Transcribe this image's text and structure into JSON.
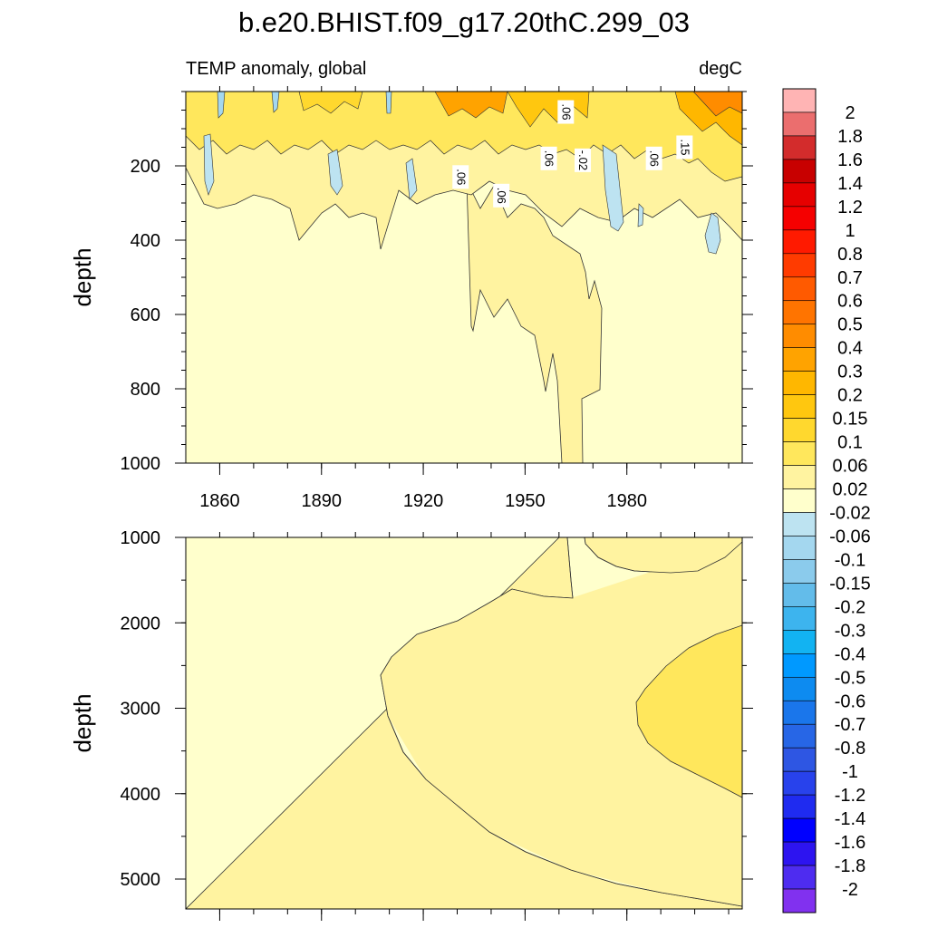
{
  "title": "b.e20.BHIST.f09_g17.20thC.299_03",
  "left_string": "TEMP anomaly, global",
  "right_string": "degC",
  "colors": {
    "background": "#ffffff",
    "axis": "#000000",
    "contour_line": "#333333"
  },
  "chart_data": [
    {
      "type": "heatmap",
      "panel": "upper",
      "xlabel": "",
      "ylabel": "depth",
      "xlim": [
        1850,
        2014
      ],
      "ylim": [
        1000,
        0
      ],
      "x_ticks": [
        1860,
        1890,
        1920,
        1950,
        1980
      ],
      "y_ticks": [
        200,
        400,
        600,
        800,
        1000
      ],
      "contour_labels": [
        {
          "text": ".06",
          "x": 1931,
          "y": 230
        },
        {
          "text": ".06",
          "x": 1943,
          "y": 280
        },
        {
          "text": ".06",
          "x": 1957,
          "y": 180
        },
        {
          "text": ".06",
          "x": 1962,
          "y": 55
        },
        {
          "text": "-.02",
          "x": 1967,
          "y": 185
        },
        {
          "text": ".06",
          "x": 1988,
          "y": 180
        },
        {
          "text": ".15",
          "x": 1997,
          "y": 150
        }
      ],
      "fields": [
        {
          "level": 0.02,
          "desc": "tongue 1930-1965 from 250 to 1000",
          "approx_points": [
            [
              1929,
              230
            ],
            [
              1930,
              640
            ],
            [
              1940,
              700
            ],
            [
              1950,
              800
            ],
            [
              1956,
              1000
            ],
            [
              1962,
              1000
            ],
            [
              1966,
              800
            ],
            [
              1962,
              560
            ],
            [
              1954,
              390
            ],
            [
              1942,
              320
            ],
            [
              1935,
              250
            ]
          ]
        },
        {
          "level": -0.02,
          "desc": "cold patch 1990s near 400",
          "approx_points": [
            [
              1995,
              380
            ],
            [
              1998,
              420
            ],
            [
              1996,
              445
            ],
            [
              1993,
              420
            ]
          ]
        },
        {
          "level": 0.2,
          "desc": "surface warming 1990-2014",
          "approx_points": [
            [
              1987,
              0
            ],
            [
              2014,
              0
            ],
            [
              2014,
              200
            ],
            [
              2005,
              140
            ],
            [
              1995,
              110
            ],
            [
              1988,
              60
            ]
          ]
        }
      ],
      "notes": "surface (0-300 m) alternating warm/cold anomalies 1850-2014"
    },
    {
      "type": "heatmap",
      "panel": "lower",
      "xlabel": "",
      "ylabel": "depth",
      "xlim": [
        1850,
        2014
      ],
      "ylim": [
        5350,
        1000
      ],
      "x_ticks": [
        1860,
        1890,
        1920,
        1950,
        1980
      ],
      "y_ticks": [
        1000,
        2000,
        3000,
        4000,
        5000
      ],
      "fields": [
        {
          "level": 0.02,
          "desc": "warm tongue from right at depth 1000-5300",
          "approx_points": [
            [
              1955,
              1000
            ],
            [
              1960,
              1000
            ],
            [
              1962,
              1700
            ],
            [
              1950,
              1700
            ],
            [
              1935,
              1900
            ],
            [
              1905,
              2600
            ],
            [
              1912,
              3500
            ],
            [
              1935,
              4300
            ],
            [
              1960,
              4800
            ],
            [
              2014,
              5300
            ],
            [
              2014,
              1000
            ]
          ]
        },
        {
          "level": 0.06,
          "desc": "warmer core 2000-4000 m",
          "approx_points": [
            [
              2014,
              2050
            ],
            [
              2000,
              2300
            ],
            [
              1990,
              2850
            ],
            [
              1993,
              3300
            ],
            [
              2005,
              3800
            ],
            [
              2014,
              4050
            ]
          ]
        }
      ],
      "notes": "deep anomalies uniformly small positive"
    },
    {
      "type": "colorbar",
      "levels": [
        "2",
        "1.8",
        "1.6",
        "1.4",
        "1.2",
        "1",
        "0.8",
        "0.7",
        "0.6",
        "0.5",
        "0.4",
        "0.3",
        "0.2",
        "0.15",
        "0.1",
        "0.06",
        "0.02",
        "-0.02",
        "-0.06",
        "-0.1",
        "-0.15",
        "-0.2",
        "-0.3",
        "-0.4",
        "-0.5",
        "-0.6",
        "-0.7",
        "-0.8",
        "-1",
        "-1.2",
        "-1.4",
        "-1.6",
        "-1.8",
        "-2"
      ],
      "colors": [
        "#FFB4B4",
        "#EB6E6E",
        "#D32C2C",
        "#C80000",
        "#E60000",
        "#F50000",
        "#FF1A00",
        "#FF3B00",
        "#FF5A00",
        "#FF7400",
        "#FF8C00",
        "#FFA300",
        "#FFB700",
        "#FFC70F",
        "#FFD82E",
        "#FFE75C",
        "#FFF3A0",
        "#FFFFCC",
        "#BDE3F1",
        "#A4D7EF",
        "#8BCBEC",
        "#63BCEA",
        "#3DB4EE",
        "#12B3F2",
        "#0099FF",
        "#0D8BF0",
        "#1A76EB",
        "#2766E6",
        "#2E56E3",
        "#2842EC",
        "#1F2BF0",
        "#0000FF",
        "#2D14F0",
        "#4E2CF0",
        "#8131EF"
      ]
    }
  ]
}
